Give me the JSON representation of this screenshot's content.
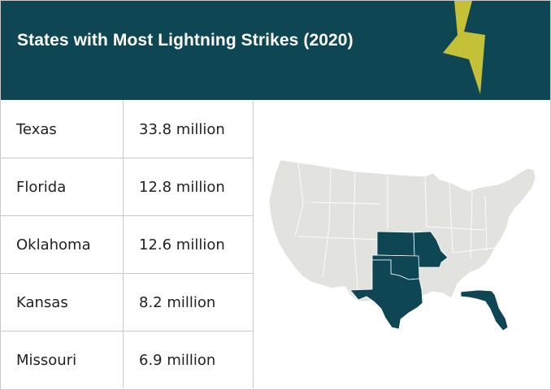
{
  "header": {
    "title": "States with Most Lightning Strikes (2020)",
    "background": "#0e4654",
    "bolt_color": "#c4c138"
  },
  "table": {
    "rows": [
      {
        "state": "Texas",
        "count": "33.8 million"
      },
      {
        "state": "Florida",
        "count": "12.8 million"
      },
      {
        "state": "Oklahoma",
        "count": "12.6 million"
      },
      {
        "state": "Kansas",
        "count": "8.2 million"
      },
      {
        "state": "Missouri",
        "count": "6.9 million"
      }
    ]
  },
  "map": {
    "base_color": "#e2e2df",
    "highlight_color": "#0e4654",
    "highlighted_states": [
      "Texas",
      "Florida",
      "Oklahoma",
      "Kansas",
      "Missouri"
    ]
  }
}
